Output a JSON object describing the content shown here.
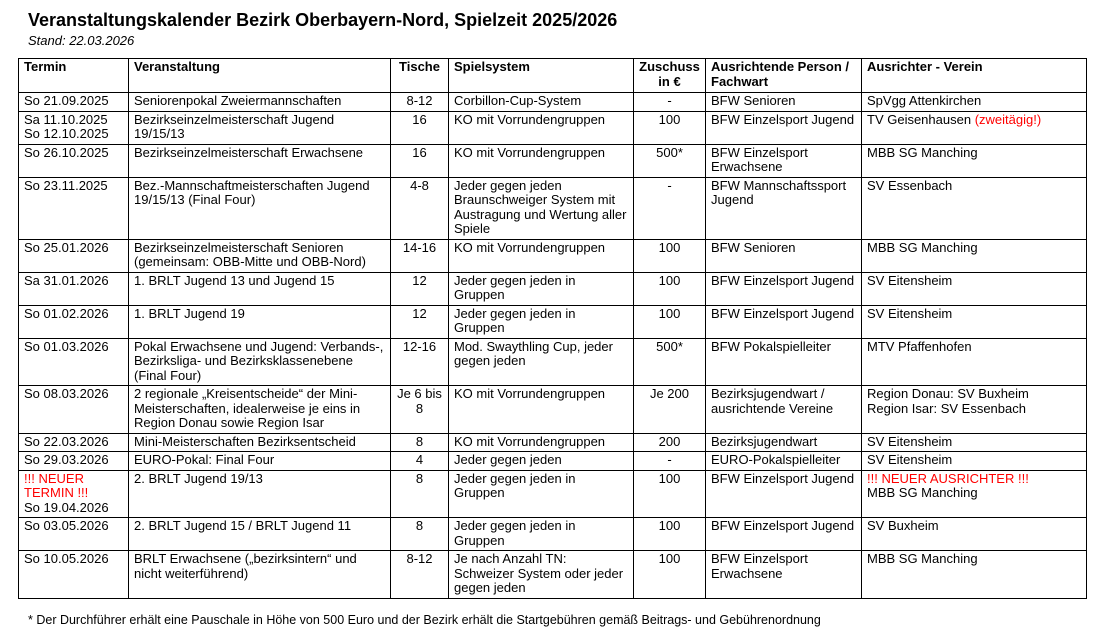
{
  "page": {
    "title": "Veranstaltungskalender Bezirk Oberbayern-Nord, Spielzeit 2025/2026",
    "stand": "Stand: 22.03.2026",
    "footnote": "* Der Durchführer erhält eine Pauschale in Höhe von 500 Euro und der Bezirk erhält die Startgebühren gemäß Beitrags- und Gebührenordnung"
  },
  "colors": {
    "highlight_red": "#FF0000",
    "text": "#000000",
    "border": "#000000"
  },
  "table": {
    "headers": [
      "Termin",
      "Veranstaltung",
      "Tische",
      "Spielsystem",
      "Zuschuss in €",
      "Ausrichtende Person / Fachwart",
      "Ausrichter - Verein"
    ],
    "rows": [
      {
        "cells": [
          [
            {
              "text": "So 21.09.2025"
            }
          ],
          [
            {
              "text": "Seniorenpokal Zweiermannschaften"
            }
          ],
          [
            {
              "text": "8-12"
            }
          ],
          [
            {
              "text": "Corbillon-Cup-System"
            }
          ],
          [
            {
              "text": "-"
            }
          ],
          [
            {
              "text": "BFW Senioren"
            }
          ],
          [
            {
              "text": "SpVgg Attenkirchen"
            }
          ]
        ]
      },
      {
        "cells": [
          [
            {
              "text": "Sa 11.10.2025\nSo 12.10.2025"
            }
          ],
          [
            {
              "text": "Bezirkseinzelmeisterschaft Jugend 19/15/13"
            }
          ],
          [
            {
              "text": "16"
            }
          ],
          [
            {
              "text": "KO mit Vorrundengruppen"
            }
          ],
          [
            {
              "text": "100"
            }
          ],
          [
            {
              "text": "BFW Einzelsport Jugend"
            }
          ],
          [
            {
              "text": "TV Geisenhausen "
            },
            {
              "text": "(zweitägig!)",
              "red": true
            }
          ]
        ]
      },
      {
        "cells": [
          [
            {
              "text": "So 26.10.2025"
            }
          ],
          [
            {
              "text": "Bezirkseinzelmeisterschaft Erwachsene"
            }
          ],
          [
            {
              "text": "16"
            }
          ],
          [
            {
              "text": "KO mit Vorrundengruppen"
            }
          ],
          [
            {
              "text": "500*"
            }
          ],
          [
            {
              "text": "BFW Einzelsport Erwachsene"
            }
          ],
          [
            {
              "text": "MBB SG Manching"
            }
          ]
        ]
      },
      {
        "cells": [
          [
            {
              "text": "So 23.11.2025"
            }
          ],
          [
            {
              "text": "Bez.-Mannschaftmeisterschaften Jugend 19/15/13 (Final Four)"
            }
          ],
          [
            {
              "text": "4-8"
            }
          ],
          [
            {
              "text": "Jeder gegen jeden Braunschweiger System mit Austragung und Wertung aller Spiele"
            }
          ],
          [
            {
              "text": "-"
            }
          ],
          [
            {
              "text": "BFW Mannschaftssport Jugend"
            }
          ],
          [
            {
              "text": "SV Essenbach"
            }
          ]
        ]
      },
      {
        "cells": [
          [
            {
              "text": "So 25.01.2026"
            }
          ],
          [
            {
              "text": "Bezirkseinzelmeisterschaft Senioren (gemeinsam: OBB-Mitte und OBB-Nord)"
            }
          ],
          [
            {
              "text": "14-16"
            }
          ],
          [
            {
              "text": "KO mit Vorrundengruppen"
            }
          ],
          [
            {
              "text": "100"
            }
          ],
          [
            {
              "text": "BFW Senioren"
            }
          ],
          [
            {
              "text": "MBB SG Manching"
            }
          ]
        ]
      },
      {
        "cells": [
          [
            {
              "text": "Sa 31.01.2026"
            }
          ],
          [
            {
              "text": "1. BRLT Jugend 13 und Jugend 15"
            }
          ],
          [
            {
              "text": "12"
            }
          ],
          [
            {
              "text": "Jeder gegen jeden in Gruppen"
            }
          ],
          [
            {
              "text": "100"
            }
          ],
          [
            {
              "text": "BFW Einzelsport Jugend"
            }
          ],
          [
            {
              "text": "SV Eitensheim"
            }
          ]
        ]
      },
      {
        "cells": [
          [
            {
              "text": "So 01.02.2026"
            }
          ],
          [
            {
              "text": "1. BRLT Jugend 19"
            }
          ],
          [
            {
              "text": "12"
            }
          ],
          [
            {
              "text": "Jeder gegen jeden in Gruppen"
            }
          ],
          [
            {
              "text": "100"
            }
          ],
          [
            {
              "text": "BFW Einzelsport Jugend"
            }
          ],
          [
            {
              "text": "SV Eitensheim"
            }
          ]
        ]
      },
      {
        "cells": [
          [
            {
              "text": "So 01.03.2026"
            }
          ],
          [
            {
              "text": "Pokal Erwachsene und Jugend: Verbands-, Bezirksliga- und Bezirksklassenebene (Final Four)"
            }
          ],
          [
            {
              "text": "12-16"
            }
          ],
          [
            {
              "text": "Mod. Swaythling Cup, jeder gegen jeden"
            }
          ],
          [
            {
              "text": "500*"
            }
          ],
          [
            {
              "text": "BFW Pokalspielleiter"
            }
          ],
          [
            {
              "text": "MTV Pfaffenhofen"
            }
          ]
        ]
      },
      {
        "cells": [
          [
            {
              "text": "So 08.03.2026"
            }
          ],
          [
            {
              "text": "2 regionale „Kreisentscheide“ der Mini-Meisterschaften, idealerweise je eins in Region Donau sowie Region Isar"
            }
          ],
          [
            {
              "text": "Je 6 bis 8"
            }
          ],
          [
            {
              "text": "KO mit Vorrundengruppen"
            }
          ],
          [
            {
              "text": "Je 200"
            }
          ],
          [
            {
              "text": "Bezirksjugendwart / ausrichtende Vereine"
            }
          ],
          [
            {
              "text": "Region Donau: SV Buxheim\nRegion Isar: SV Essenbach"
            }
          ]
        ]
      },
      {
        "cells": [
          [
            {
              "text": "So 22.03.2026"
            }
          ],
          [
            {
              "text": "Mini-Meisterschaften Bezirksentscheid"
            }
          ],
          [
            {
              "text": "8"
            }
          ],
          [
            {
              "text": "KO mit Vorrundengruppen"
            }
          ],
          [
            {
              "text": "200"
            }
          ],
          [
            {
              "text": "Bezirksjugendwart"
            }
          ],
          [
            {
              "text": "SV Eitensheim"
            }
          ]
        ]
      },
      {
        "cells": [
          [
            {
              "text": "So 29.03.2026"
            }
          ],
          [
            {
              "text": "EURO-Pokal: Final Four"
            }
          ],
          [
            {
              "text": "4"
            }
          ],
          [
            {
              "text": "Jeder gegen jeden"
            }
          ],
          [
            {
              "text": "-"
            }
          ],
          [
            {
              "text": "EURO-Pokalspielleiter"
            }
          ],
          [
            {
              "text": "SV Eitensheim"
            }
          ]
        ]
      },
      {
        "cells": [
          [
            {
              "text": "!!! NEUER TERMIN !!!\n",
              "red": true
            },
            {
              "text": "So 19.04.2026"
            }
          ],
          [
            {
              "text": "2. BRLT Jugend 19/13"
            }
          ],
          [
            {
              "text": "8"
            }
          ],
          [
            {
              "text": "Jeder gegen jeden in Gruppen"
            }
          ],
          [
            {
              "text": "100"
            }
          ],
          [
            {
              "text": "BFW Einzelsport Jugend"
            }
          ],
          [
            {
              "text": "!!! NEUER AUSRICHTER !!!\n",
              "red": true
            },
            {
              "text": "MBB SG Manching"
            }
          ]
        ]
      },
      {
        "cells": [
          [
            {
              "text": "So 03.05.2026"
            }
          ],
          [
            {
              "text": "2. BRLT Jugend 15 / BRLT Jugend 11"
            }
          ],
          [
            {
              "text": "8"
            }
          ],
          [
            {
              "text": "Jeder gegen jeden in Gruppen"
            }
          ],
          [
            {
              "text": "100"
            }
          ],
          [
            {
              "text": "BFW Einzelsport Jugend"
            }
          ],
          [
            {
              "text": "SV Buxheim"
            }
          ]
        ]
      },
      {
        "cells": [
          [
            {
              "text": "So 10.05.2026"
            }
          ],
          [
            {
              "text": "BRLT Erwachsene („bezirksintern“ und nicht weiterführend)"
            }
          ],
          [
            {
              "text": "8-12"
            }
          ],
          [
            {
              "text": "Je nach Anzahl TN: Schweizer System oder jeder gegen jeden"
            }
          ],
          [
            {
              "text": "100"
            }
          ],
          [
            {
              "text": "BFW Einzelsport Erwachsene"
            }
          ],
          [
            {
              "text": "MBB SG Manching"
            }
          ]
        ]
      }
    ]
  }
}
